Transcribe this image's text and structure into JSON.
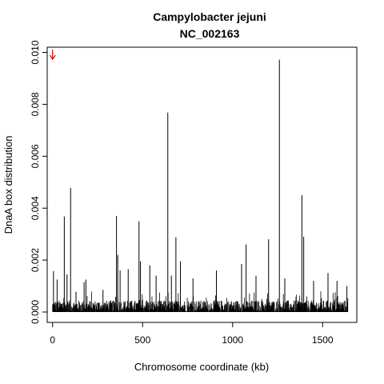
{
  "chart_data": {
    "type": "bar",
    "title": "Campylobacter jejuni",
    "subtitle": "NC_002163",
    "xlabel": "Chromosome coordinate (kb)",
    "ylabel": "DnaA box distribution",
    "xlim": [
      -30,
      1690
    ],
    "ylim": [
      -0.0004,
      0.0102
    ],
    "x_ticks": [
      0,
      500,
      1000,
      1500
    ],
    "x_tick_labels": [
      "0",
      "500",
      "1000",
      "1500"
    ],
    "y_ticks": [
      0.0,
      0.002,
      0.004,
      0.006,
      0.008,
      0.01
    ],
    "y_tick_labels": [
      "0.000",
      "0.002",
      "0.004",
      "0.006",
      "0.008",
      "0.010"
    ],
    "bar_color": "#000000",
    "origin_marker": {
      "x": 0,
      "y": 0.0098,
      "color": "#cc0000"
    },
    "peaks": [
      {
        "x": 5,
        "y": 0.00158
      },
      {
        "x": 25,
        "y": 0.00125
      },
      {
        "x": 65,
        "y": 0.00368
      },
      {
        "x": 80,
        "y": 0.00145
      },
      {
        "x": 100,
        "y": 0.00478
      },
      {
        "x": 130,
        "y": 0.00078
      },
      {
        "x": 175,
        "y": 0.00115
      },
      {
        "x": 185,
        "y": 0.00125
      },
      {
        "x": 280,
        "y": 0.00085
      },
      {
        "x": 355,
        "y": 0.0037
      },
      {
        "x": 362,
        "y": 0.0022
      },
      {
        "x": 375,
        "y": 0.0016
      },
      {
        "x": 420,
        "y": 0.00165
      },
      {
        "x": 480,
        "y": 0.0035
      },
      {
        "x": 488,
        "y": 0.00195
      },
      {
        "x": 540,
        "y": 0.0018
      },
      {
        "x": 575,
        "y": 0.0014
      },
      {
        "x": 640,
        "y": 0.00768
      },
      {
        "x": 660,
        "y": 0.0014
      },
      {
        "x": 685,
        "y": 0.00288
      },
      {
        "x": 710,
        "y": 0.00195
      },
      {
        "x": 780,
        "y": 0.0013
      },
      {
        "x": 910,
        "y": 0.0016
      },
      {
        "x": 1050,
        "y": 0.00185
      },
      {
        "x": 1075,
        "y": 0.0026
      },
      {
        "x": 1130,
        "y": 0.0014
      },
      {
        "x": 1200,
        "y": 0.0028
      },
      {
        "x": 1260,
        "y": 0.00972
      },
      {
        "x": 1290,
        "y": 0.0013
      },
      {
        "x": 1385,
        "y": 0.0045
      },
      {
        "x": 1395,
        "y": 0.0029
      },
      {
        "x": 1450,
        "y": 0.0012
      },
      {
        "x": 1530,
        "y": 0.0015
      },
      {
        "x": 1580,
        "y": 0.0012
      },
      {
        "x": 1635,
        "y": 0.001
      }
    ],
    "x_start": 0,
    "x_end": 1640,
    "baseline_level": 0.00045
  }
}
